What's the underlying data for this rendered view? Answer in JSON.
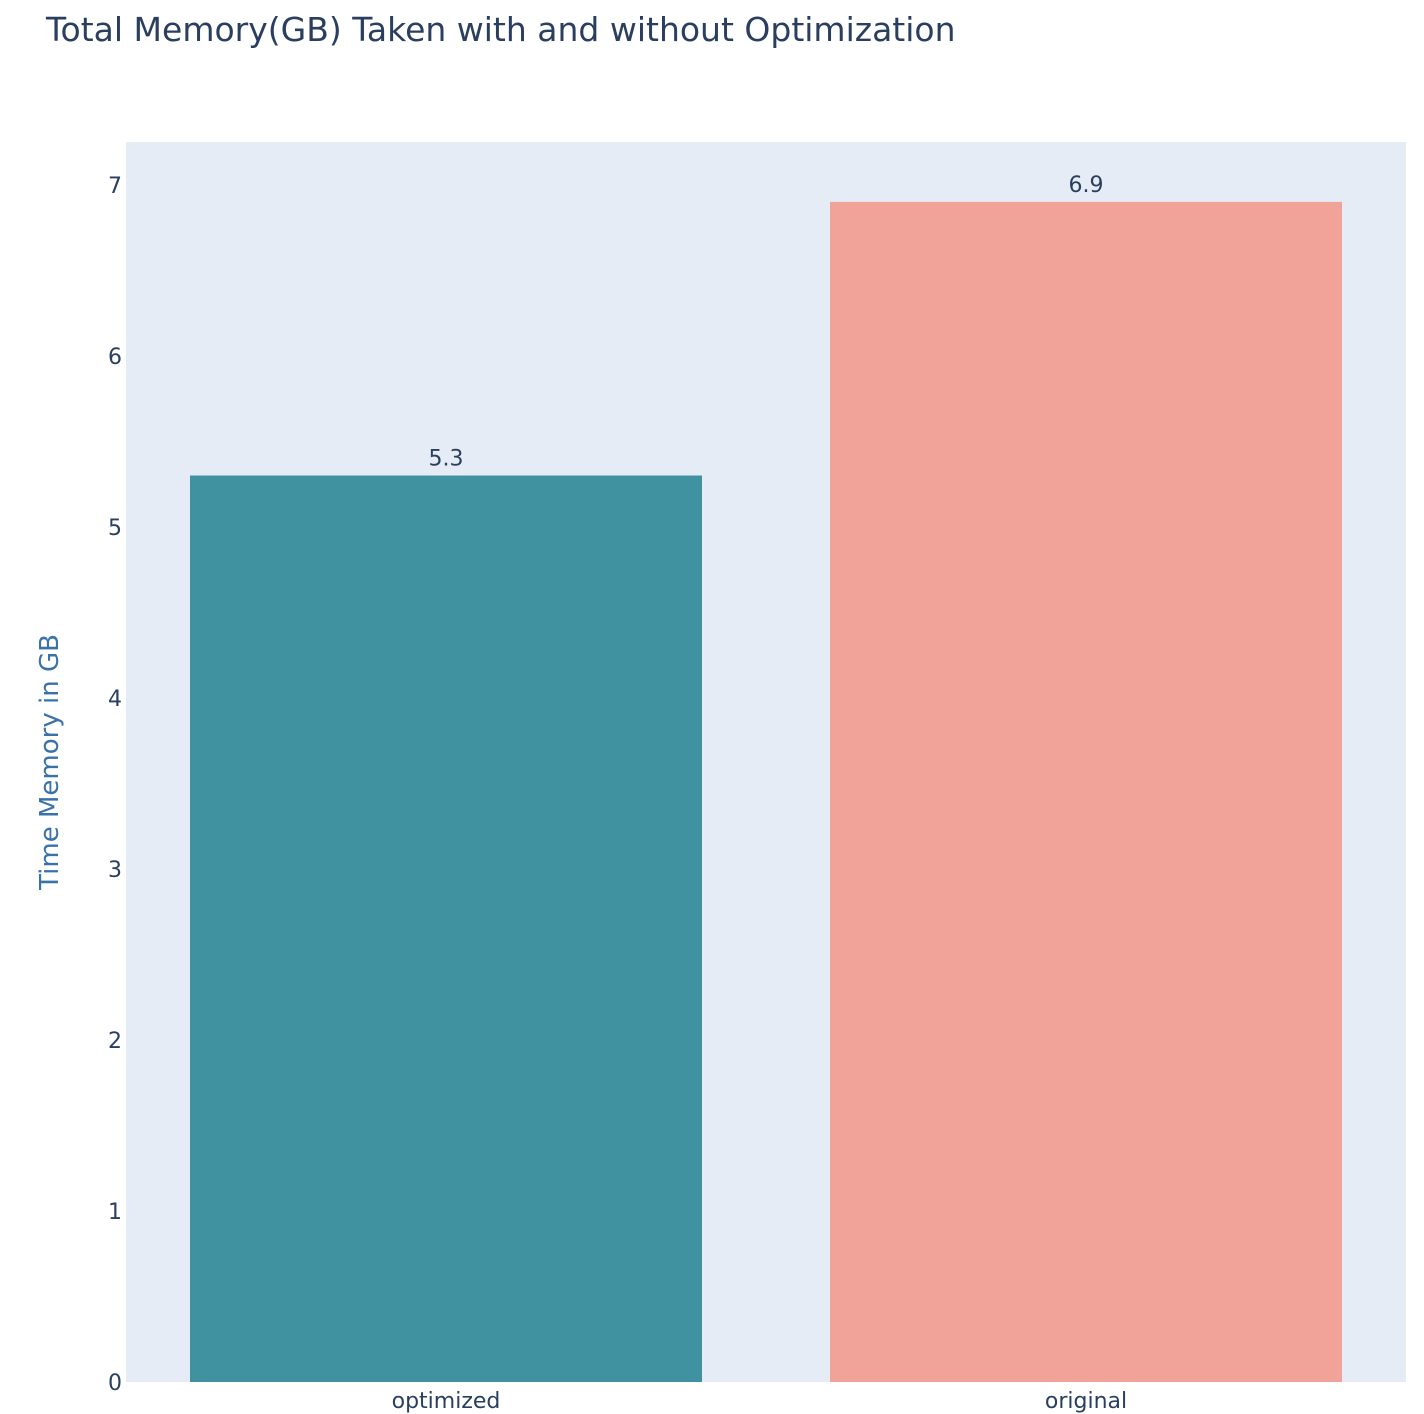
{
  "chart_data": {
    "type": "bar",
    "title": "Total Memory(GB) Taken with and without Optimization",
    "xlabel": "",
    "ylabel": "Time Memory in GB",
    "categories": [
      "optimized",
      "original"
    ],
    "values": [
      5.3,
      6.9
    ],
    "data_labels": [
      "5.3",
      "6.9"
    ],
    "bar_colors": [
      "#4192a0",
      "#f2a399"
    ],
    "ylim": [
      0,
      7.25
    ],
    "yticks": [
      0,
      1,
      2,
      3,
      4,
      5,
      6,
      7
    ],
    "grid": false,
    "legend": "none",
    "colors": {
      "plot_background": "#e5ecf6",
      "text": "#2a3f5f",
      "ylabel": "#3a72a8"
    }
  }
}
